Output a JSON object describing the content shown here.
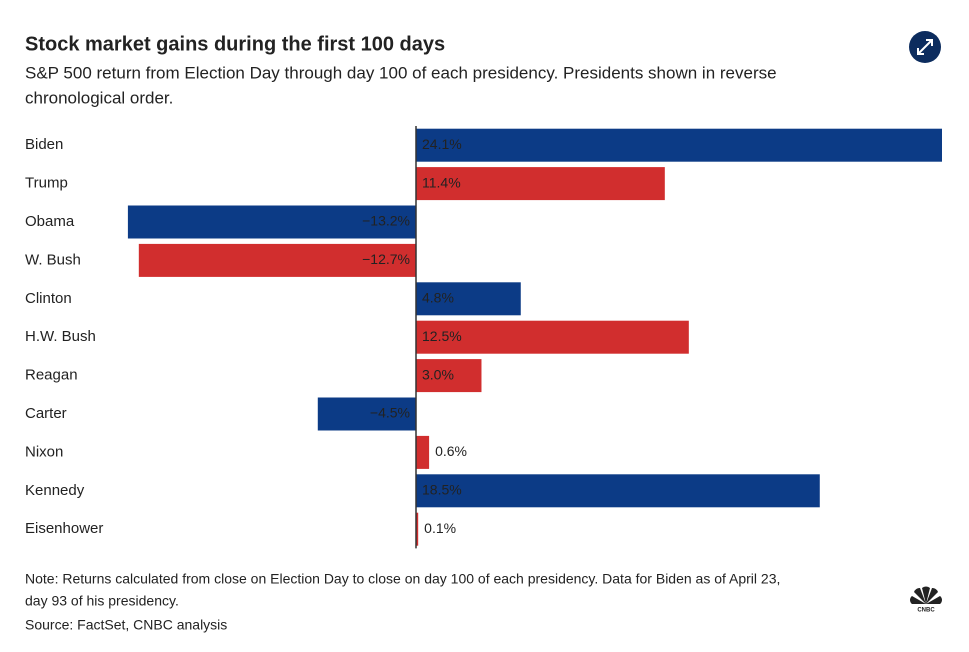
{
  "chart_data": {
    "type": "bar",
    "orientation": "horizontal",
    "title": "Stock market gains during the first 100 days",
    "subtitle": [
      "S&P 500 return from Election Day through day 100 of each presidency. Presidents shown in reverse",
      "chronological order."
    ],
    "categories": [
      "Biden",
      "Trump",
      "Obama",
      "W. Bush",
      "Clinton",
      "H.W. Bush",
      "Reagan",
      "Carter",
      "Nixon",
      "Kennedy",
      "Eisenhower"
    ],
    "values": [
      24.1,
      11.4,
      -13.2,
      -12.7,
      4.8,
      12.5,
      3.0,
      -4.5,
      0.6,
      18.5,
      0.1
    ],
    "value_labels": [
      "24.1%",
      "11.4%",
      "−13.2%",
      "−12.7%",
      "4.8%",
      "12.5%",
      "3.0%",
      "−4.5%",
      "0.6%",
      "18.5%",
      "0.1%"
    ],
    "colors": [
      "#0c3b86",
      "#d12e2e",
      "#0c3b86",
      "#d12e2e",
      "#0c3b86",
      "#d12e2e",
      "#d12e2e",
      "#0c3b86",
      "#d12e2e",
      "#0c3b86",
      "#d12e2e"
    ],
    "note": [
      "Note: Returns calculated from close on Election Day to close on day 100 of each presidency. Data for Biden as of April 23,",
      "day 93 of his presidency."
    ],
    "source": "Source: FactSet, CNBC analysis",
    "logo": "CNBC"
  }
}
